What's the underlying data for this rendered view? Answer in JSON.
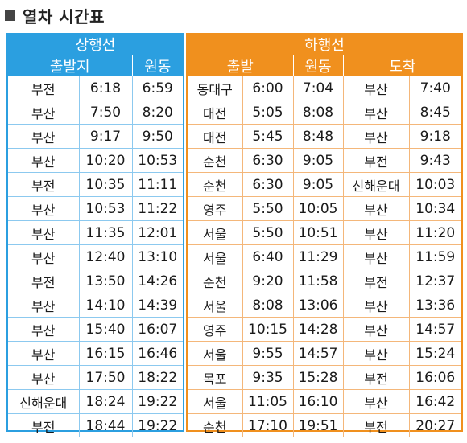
{
  "title": "열차 시간표",
  "up": {
    "label": "상행선",
    "headers": [
      "출발지",
      "원동"
    ],
    "rows": [
      [
        "부전",
        "6:18",
        "6:59"
      ],
      [
        "부산",
        "7:50",
        "8:20"
      ],
      [
        "부산",
        "9:17",
        "9:50"
      ],
      [
        "부산",
        "10:20",
        "10:53"
      ],
      [
        "부전",
        "10:35",
        "11:11"
      ],
      [
        "부산",
        "10:53",
        "11:22"
      ],
      [
        "부산",
        "11:35",
        "12:01"
      ],
      [
        "부산",
        "12:40",
        "13:10"
      ],
      [
        "부전",
        "13:50",
        "14:26"
      ],
      [
        "부산",
        "14:10",
        "14:39"
      ],
      [
        "부산",
        "15:40",
        "16:07"
      ],
      [
        "부산",
        "16:15",
        "16:46"
      ],
      [
        "부산",
        "17:50",
        "18:22"
      ],
      [
        "신해운대",
        "18:24",
        "19:22"
      ],
      [
        "부전",
        "18:44",
        "19:22"
      ]
    ]
  },
  "down": {
    "label": "하행선",
    "headers": [
      "출발",
      "원동",
      "도착"
    ],
    "rows": [
      [
        "동대구",
        "6:00",
        "7:04",
        "부산",
        "7:40"
      ],
      [
        "대전",
        "5:05",
        "8:08",
        "부산",
        "8:45"
      ],
      [
        "대전",
        "5:45",
        "8:48",
        "부산",
        "9:18"
      ],
      [
        "순천",
        "6:30",
        "9:05",
        "부전",
        "9:43"
      ],
      [
        "순천",
        "6:30",
        "9:05",
        "신해운대",
        "10:03"
      ],
      [
        "영주",
        "5:50",
        "10:05",
        "부산",
        "10:34"
      ],
      [
        "서울",
        "5:50",
        "10:51",
        "부산",
        "11:20"
      ],
      [
        "서울",
        "6:40",
        "11:29",
        "부산",
        "11:59"
      ],
      [
        "순천",
        "9:20",
        "11:58",
        "부전",
        "12:37"
      ],
      [
        "서울",
        "8:08",
        "13:06",
        "부산",
        "13:36"
      ],
      [
        "영주",
        "10:15",
        "14:28",
        "부산",
        "14:57"
      ],
      [
        "서울",
        "9:55",
        "14:57",
        "부산",
        "15:24"
      ],
      [
        "목포",
        "9:35",
        "15:28",
        "부전",
        "16:06"
      ],
      [
        "서울",
        "11:05",
        "16:10",
        "부산",
        "16:42"
      ],
      [
        "순천",
        "17:10",
        "19:51",
        "부전",
        "20:27"
      ]
    ]
  }
}
